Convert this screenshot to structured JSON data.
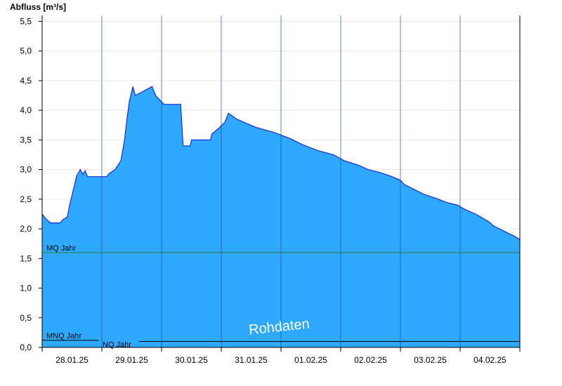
{
  "chart_data": {
    "type": "area",
    "ylabel": "Abfluss [m³/s]",
    "ylim": [
      0,
      5.6
    ],
    "yticks": [
      "0,0",
      "0,5",
      "1,0",
      "1,5",
      "2,0",
      "2,5",
      "3,0",
      "3,5",
      "4,0",
      "4,5",
      "5,0",
      "5,5"
    ],
    "ytick_values": [
      0,
      0.5,
      1.0,
      1.5,
      2.0,
      2.5,
      3.0,
      3.5,
      4.0,
      4.5,
      5.0,
      5.5
    ],
    "xlim": [
      0,
      8
    ],
    "x_unit": "days since 28.01.25 00:00",
    "xticks": [
      "28.01.25",
      "29.01.25",
      "30.01.25",
      "31.01.25",
      "01.02.25",
      "02.02.25",
      "03.02.25",
      "04.02.25"
    ],
    "grid": true,
    "fill_color": "#2ea9ff",
    "line_color": "#1a2bd6",
    "reference_lines": [
      {
        "label": "MQ Jahr",
        "value": 1.6,
        "color": "#2e7d3a"
      },
      {
        "label": "MNQ Jahr",
        "value": 0.12,
        "color": "#000000"
      },
      {
        "label": "NQ Jahr",
        "value": 0.1,
        "color": "#000000"
      }
    ],
    "watermark": "Rohdaten",
    "series": [
      {
        "values": [
          [
            0.0,
            2.25
          ],
          [
            0.04,
            2.2
          ],
          [
            0.08,
            2.15
          ],
          [
            0.14,
            2.1
          ],
          [
            0.3,
            2.1
          ],
          [
            0.34,
            2.15
          ],
          [
            0.42,
            2.2
          ],
          [
            0.46,
            2.4
          ],
          [
            0.52,
            2.65
          ],
          [
            0.58,
            2.9
          ],
          [
            0.64,
            3.0
          ],
          [
            0.68,
            2.92
          ],
          [
            0.72,
            2.98
          ],
          [
            0.76,
            2.88
          ],
          [
            1.08,
            2.88
          ],
          [
            1.12,
            2.93
          ],
          [
            1.22,
            3.0
          ],
          [
            1.32,
            3.15
          ],
          [
            1.38,
            3.5
          ],
          [
            1.42,
            3.85
          ],
          [
            1.46,
            4.15
          ],
          [
            1.52,
            4.4
          ],
          [
            1.56,
            4.25
          ],
          [
            1.84,
            4.4
          ],
          [
            1.9,
            4.25
          ],
          [
            2.04,
            4.1
          ],
          [
            2.32,
            4.1
          ],
          [
            2.36,
            3.4
          ],
          [
            2.48,
            3.4
          ],
          [
            2.5,
            3.5
          ],
          [
            2.82,
            3.5
          ],
          [
            2.84,
            3.6
          ],
          [
            2.96,
            3.7
          ],
          [
            3.06,
            3.8
          ],
          [
            3.12,
            3.95
          ],
          [
            3.26,
            3.85
          ],
          [
            3.56,
            3.72
          ],
          [
            3.9,
            3.62
          ],
          [
            4.16,
            3.52
          ],
          [
            4.36,
            3.42
          ],
          [
            4.62,
            3.32
          ],
          [
            4.88,
            3.25
          ],
          [
            5.06,
            3.15
          ],
          [
            5.28,
            3.08
          ],
          [
            5.46,
            3.0
          ],
          [
            5.66,
            2.95
          ],
          [
            5.86,
            2.88
          ],
          [
            6.0,
            2.82
          ],
          [
            6.06,
            2.75
          ],
          [
            6.16,
            2.7
          ],
          [
            6.26,
            2.65
          ],
          [
            6.4,
            2.58
          ],
          [
            6.58,
            2.52
          ],
          [
            6.76,
            2.45
          ],
          [
            6.96,
            2.4
          ],
          [
            7.04,
            2.35
          ],
          [
            7.14,
            2.3
          ],
          [
            7.26,
            2.25
          ],
          [
            7.38,
            2.18
          ],
          [
            7.48,
            2.12
          ],
          [
            7.56,
            2.05
          ],
          [
            7.66,
            2.0
          ],
          [
            7.76,
            1.95
          ],
          [
            7.9,
            1.88
          ],
          [
            8.0,
            1.82
          ]
        ]
      }
    ]
  }
}
